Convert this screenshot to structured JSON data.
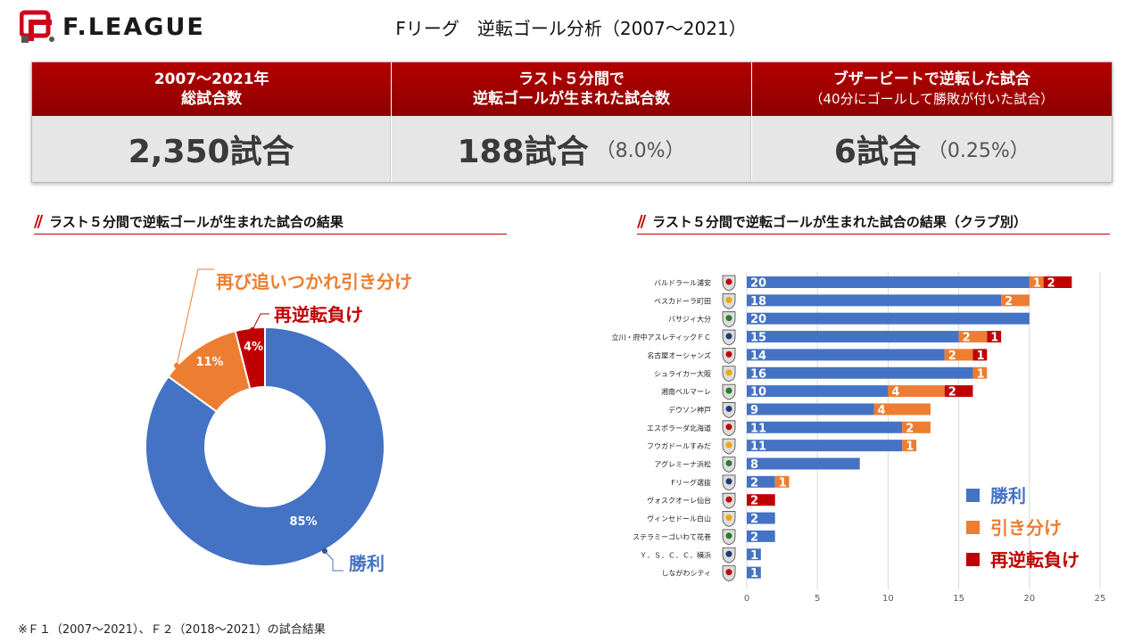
{
  "header": {
    "logo_text": "F.LEAGUE",
    "title": "Fリーグ　逆転ゴール分析（2007～2021）"
  },
  "summary": [
    {
      "head_line1": "2007～2021年",
      "head_line2": "総試合数",
      "value": "2,350試合",
      "pct": ""
    },
    {
      "head_line1": "ラスト５分間で",
      "head_line2": "逆転ゴールが生まれた試合数",
      "value": "188試合",
      "pct": "（8.0%）"
    },
    {
      "head_line1": "ブザービートで逆転した試合",
      "head_line2": "（40分にゴールして勝敗が付いた試合）",
      "value": "6試合",
      "pct": "（0.25%）"
    }
  ],
  "left_section_title": "ラスト５分間で逆転ゴールが生まれた試合の結果",
  "right_section_title": "ラスト５分間で逆転ゴールが生まれた試合の結果（クラブ別）",
  "footnote": "※Ｆ１（2007～2021）、Ｆ２（2018～2021）の試合結果",
  "colors": {
    "win": "#4472c4",
    "draw": "#ed7d31",
    "loss": "#c00000",
    "header_red": "#b30000"
  },
  "chart_data": [
    {
      "type": "pie",
      "categories": [
        "勝利",
        "再び追いつかれ引き分け",
        "再逆転負け"
      ],
      "values": [
        85,
        11,
        4
      ],
      "value_labels": [
        "85%",
        "11%",
        "4%"
      ],
      "donut": true
    },
    {
      "type": "bar",
      "orientation": "horizontal",
      "stacked": true,
      "categories": [
        "バルドラール浦安",
        "ペスカドーラ町田",
        "バサジィ大分",
        "立川・府中アスレティックＦＣ",
        "名古屋オーシャンズ",
        "シュライカー大阪",
        "湘南ベルマーレ",
        "デウソン神戸",
        "エスポラーダ北海道",
        "フウガドールすみだ",
        "アグレミーナ浜松",
        "Fリーグ選抜",
        "ヴォスクオーレ仙台",
        "ヴィンセドール白山",
        "ステラミーゴいわて花巻",
        "Ｙ．Ｓ．Ｃ．Ｃ．横浜",
        "しながわシティ"
      ],
      "series": [
        {
          "name": "勝利",
          "values": [
            20,
            18,
            20,
            15,
            14,
            16,
            10,
            9,
            11,
            11,
            8,
            2,
            0,
            2,
            2,
            1,
            1
          ]
        },
        {
          "name": "引き分け",
          "values": [
            1,
            2,
            0,
            2,
            2,
            1,
            4,
            4,
            2,
            1,
            0,
            1,
            0,
            0,
            0,
            0,
            0
          ]
        },
        {
          "name": "再逆転負け",
          "values": [
            2,
            0,
            0,
            1,
            1,
            0,
            2,
            0,
            0,
            0,
            0,
            0,
            2,
            0,
            0,
            0,
            0
          ]
        }
      ],
      "xlim": [
        0,
        25
      ],
      "xticks": [
        0,
        5,
        10,
        15,
        20,
        25
      ],
      "grid": true,
      "legend_position": "bottom-right"
    }
  ]
}
